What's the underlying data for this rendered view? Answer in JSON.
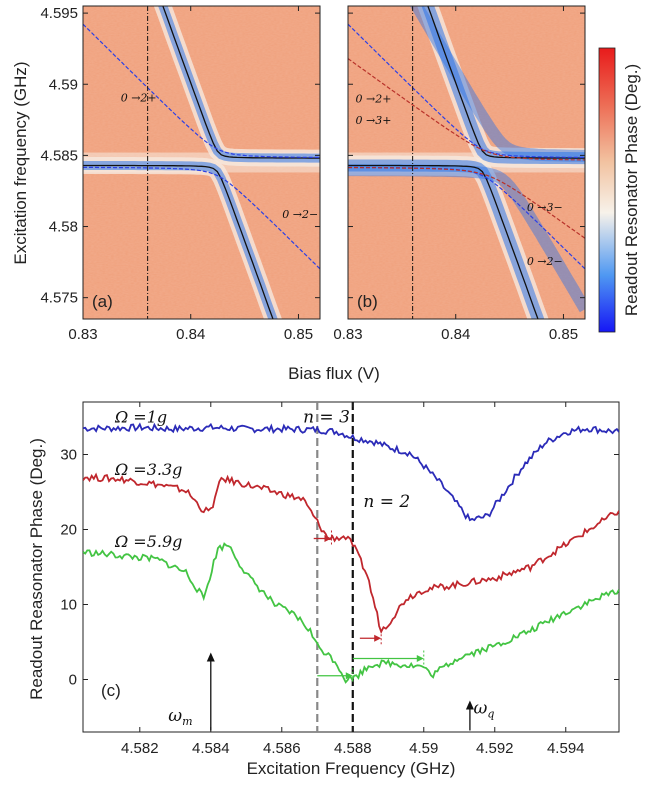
{
  "colors": {
    "map_bg": "#f0a07c",
    "map_mid": "#f6e9de",
    "map_blue": "#2b74e8",
    "fit_black": "#111111",
    "fit_blue": "#2b3fe6",
    "fit_red": "#b8322a",
    "trace_blue": "#2b2bb8",
    "trace_red": "#c0272d",
    "trace_green": "#43c443"
  },
  "chart_data": [
    {
      "type": "heatmap",
      "panel_label": "(a)",
      "xlim": [
        0.83,
        0.852
      ],
      "ylim": [
        4.5735,
        4.5955
      ],
      "x_ticks": [
        0.83,
        0.84,
        0.85
      ],
      "y_ticks": [
        4.575,
        4.58,
        4.585,
        4.59,
        4.595
      ],
      "x_tick_labels": [
        "0.83",
        "0.84",
        "0.85"
      ],
      "y_tick_labels": [
        "4.575",
        "4.58",
        "4.585",
        "4.59",
        "4.595"
      ],
      "ylabel": "Excitation frequency (GHz)",
      "vline_x": 0.836,
      "annotations": [
        {
          "text": "0 →2+",
          "x": 0.8335,
          "y": 4.5888
        },
        {
          "text": "0 →2−",
          "x": 0.8485,
          "y": 4.5806
        }
      ]
    },
    {
      "type": "heatmap",
      "panel_label": "(b)",
      "xlim": [
        0.83,
        0.852
      ],
      "ylim": [
        4.5735,
        4.5955
      ],
      "x_ticks": [
        0.83,
        0.84,
        0.85
      ],
      "x_tick_labels": [
        "0.83",
        "0.84",
        "0.85"
      ],
      "xlabel": "Bias flux (V)",
      "vline_x": 0.836,
      "annotations": [
        {
          "text": "0 →2+",
          "x": 0.8307,
          "y": 4.5887
        },
        {
          "text": "0 →3+",
          "x": 0.8307,
          "y": 4.5872
        },
        {
          "text": "0 →3−",
          "x": 0.8466,
          "y": 4.5811
        },
        {
          "text": "0 →2−",
          "x": 0.8466,
          "y": 4.5773
        }
      ]
    },
    {
      "type": "line",
      "panel_label": "(c)",
      "xlabel": "Excitation Frequency (GHz)",
      "ylabel": "Readout Reasonator Phase (Deg.)",
      "xlim": [
        4.5804,
        4.5955
      ],
      "ylim": [
        -7,
        37
      ],
      "x_ticks": [
        4.582,
        4.584,
        4.586,
        4.588,
        4.59,
        4.592,
        4.594
      ],
      "x_tick_labels": [
        "4.582",
        "4.584",
        "4.586",
        "4.588",
        "4.59",
        "4.592",
        "4.594"
      ],
      "y_ticks": [
        0,
        10,
        20,
        30
      ],
      "y_tick_labels": [
        "0",
        "10",
        "20",
        "30"
      ],
      "series": [
        {
          "name": "Ω =1g",
          "x": [
            4.5804,
            4.5812,
            4.582,
            4.583,
            4.584,
            4.585,
            4.586,
            4.587,
            4.5876,
            4.588,
            4.5886,
            4.589,
            4.5896,
            4.59,
            4.5905,
            4.591,
            4.5913,
            4.5918,
            4.5922,
            4.5928,
            4.5934,
            4.594,
            4.5946,
            4.5955
          ],
          "y": [
            33.5,
            33.5,
            33.6,
            33.4,
            33.6,
            33.4,
            33.4,
            33.3,
            33.0,
            32.3,
            31.7,
            31.0,
            30.2,
            28.5,
            26.0,
            23.0,
            21.2,
            21.8,
            24.5,
            28.5,
            31.5,
            33.0,
            33.5,
            33.0
          ]
        },
        {
          "name": "Ω =3.3g",
          "x": [
            4.5804,
            4.5815,
            4.5825,
            4.5833,
            4.5838,
            4.584,
            4.5843,
            4.585,
            4.5858,
            4.5866,
            4.587,
            4.5873,
            4.5878,
            4.588,
            4.5884,
            4.5888,
            4.589,
            4.5895,
            4.59,
            4.591,
            4.592,
            4.593,
            4.594,
            4.5955
          ],
          "y": [
            27.0,
            26.7,
            26.0,
            25.2,
            22.5,
            22.5,
            26.8,
            26.0,
            25.0,
            24.0,
            21.0,
            18.8,
            19.0,
            18.0,
            14.0,
            6.5,
            7.5,
            10.8,
            12.0,
            12.7,
            13.5,
            15.0,
            18.0,
            22.5
          ]
        },
        {
          "name": "Ω =5.9g",
          "x": [
            4.5804,
            4.5815,
            4.5825,
            4.5833,
            4.5838,
            4.5842,
            4.5845,
            4.585,
            4.5858,
            4.5864,
            4.5868,
            4.587,
            4.5875,
            4.5878,
            4.5881,
            4.5885,
            4.589,
            4.59,
            4.5902,
            4.591,
            4.592,
            4.593,
            4.594,
            4.5955
          ],
          "y": [
            17.0,
            16.5,
            16.0,
            14.3,
            10.8,
            17.5,
            18.0,
            14.0,
            10.0,
            8.5,
            6.5,
            4.5,
            2.5,
            0.0,
            0.4,
            2.0,
            2.2,
            1.7,
            0.5,
            3.0,
            4.5,
            6.5,
            9.0,
            12.0
          ]
        }
      ],
      "vlines": [
        {
          "x": 4.587,
          "color": "#888888",
          "dash": true
        },
        {
          "x": 4.588,
          "color": "#111111",
          "dash": true
        }
      ],
      "annotations": [
        {
          "text": "n = 3",
          "x": 4.5866,
          "y": 34.3
        },
        {
          "text": "n = 2",
          "x": 4.5883,
          "y": 23.0
        },
        {
          "text": "ω",
          "sub": "m",
          "x": 4.5828,
          "y": -5.5
        },
        {
          "text": "ω",
          "sub": "q",
          "x": 4.5914,
          "y": -4.5
        }
      ],
      "arrows_up": [
        {
          "x": 4.584,
          "y_from": -6.8,
          "y_to": 3.6
        },
        {
          "x": 4.5913,
          "y_from": -6.8,
          "y_to": -2.8
        }
      ]
    }
  ],
  "colorbar": {
    "label": "Readout Resonator Phase (Deg.)"
  }
}
